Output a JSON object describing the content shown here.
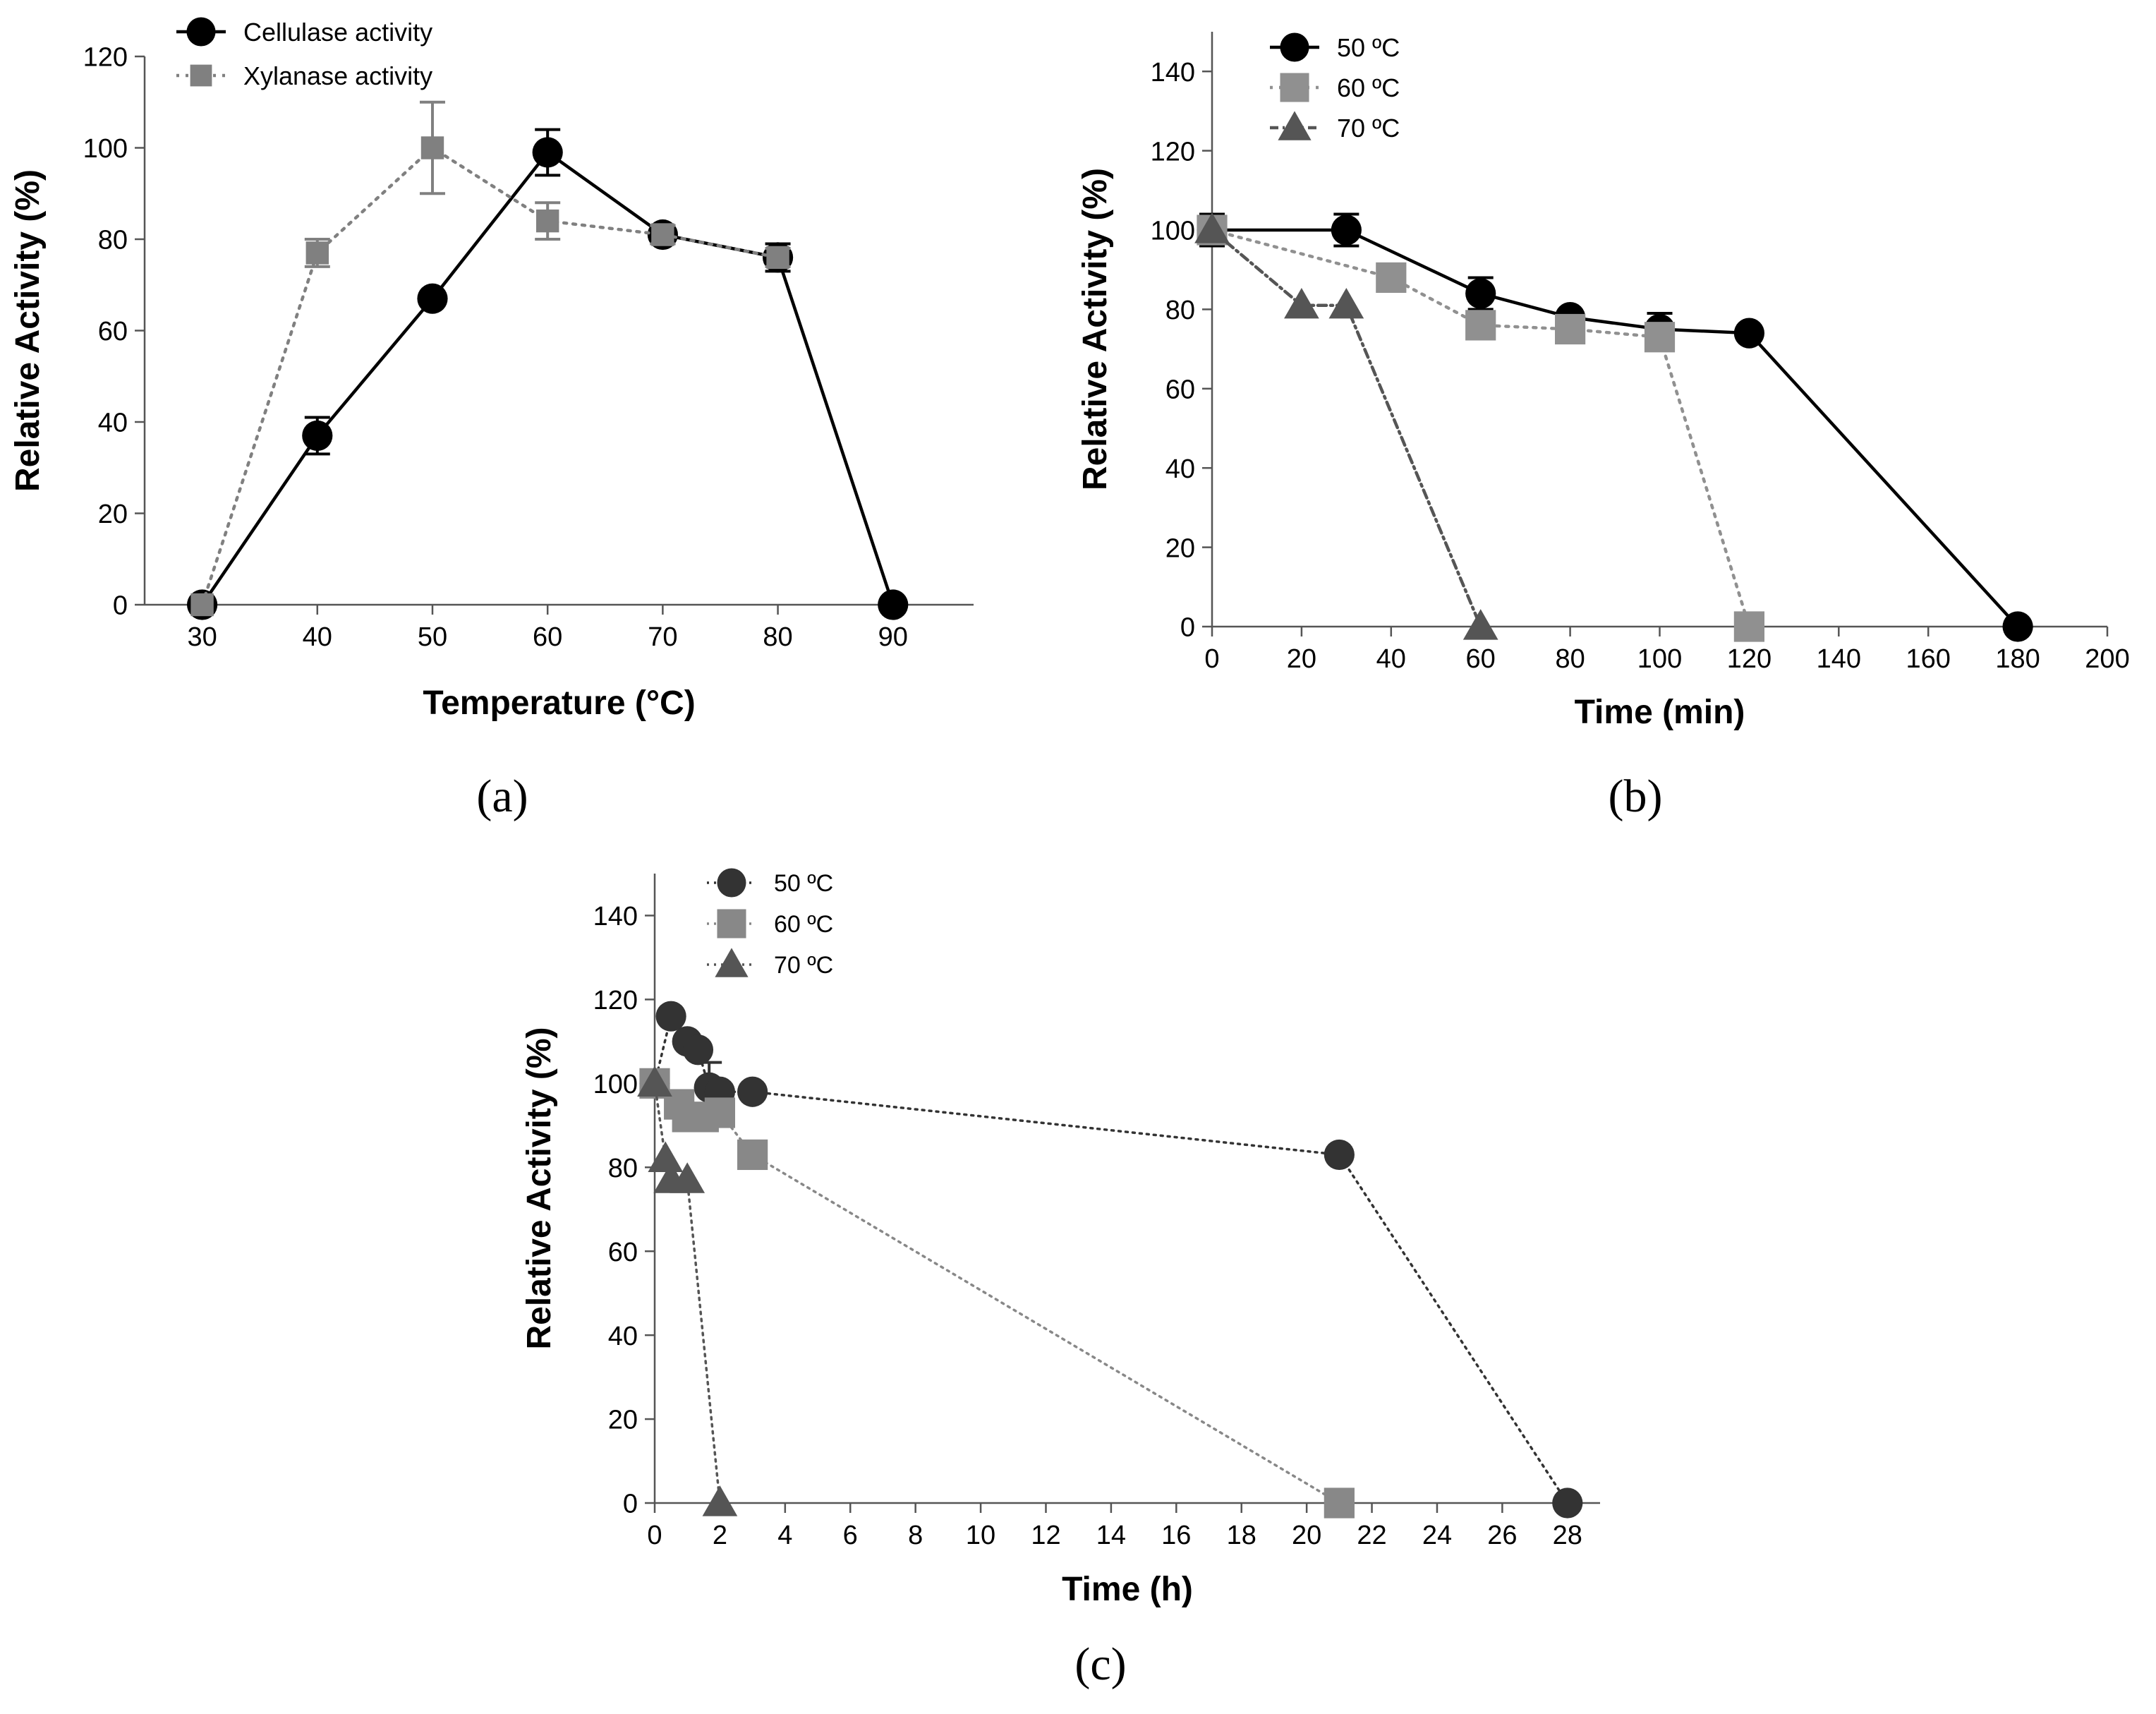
{
  "chart_data": [
    {
      "panel": "a",
      "panel_label": "(a)",
      "type": "line",
      "title": "",
      "xlabel": "Temperature (°C)",
      "ylabel": "Relative Activity (%)",
      "xlim": [
        25,
        97
      ],
      "ylim": [
        0,
        120
      ],
      "xticks": [
        30,
        40,
        50,
        60,
        70,
        80,
        90
      ],
      "yticks": [
        0,
        20,
        40,
        60,
        80,
        100,
        120
      ],
      "xtick_labels": [
        "30",
        "40",
        "50",
        "60",
        "70",
        "80",
        "90"
      ],
      "ytick_labels": [
        "0",
        "20",
        "40",
        "60",
        "80",
        "100",
        "120"
      ],
      "legend": "top-left",
      "grid": false,
      "series": [
        {
          "name": "Cellulase activity",
          "marker": "circle",
          "line": "solid",
          "color": "#000000",
          "x": [
            30,
            40,
            50,
            60,
            70,
            80,
            90
          ],
          "y": [
            0,
            37,
            67,
            99,
            81,
            76,
            0
          ],
          "err": [
            0,
            4,
            1,
            5,
            2,
            3,
            0
          ]
        },
        {
          "name": "Xylanase activity",
          "marker": "square",
          "line": "dotted",
          "color": "#808080",
          "x": [
            30,
            40,
            50,
            60,
            70,
            80
          ],
          "y": [
            0,
            77,
            100,
            84,
            81,
            76
          ],
          "err": [
            0,
            3,
            10,
            4,
            2,
            2
          ]
        }
      ]
    },
    {
      "panel": "b",
      "panel_label": "(b)",
      "type": "line",
      "title": "",
      "xlabel": "Time (min)",
      "ylabel": "Relative Activity (%)",
      "xlim": [
        0,
        200
      ],
      "ylim": [
        0,
        150
      ],
      "xticks": [
        0,
        20,
        40,
        60,
        80,
        100,
        120,
        140,
        160,
        180,
        200
      ],
      "yticks": [
        0,
        20,
        40,
        60,
        80,
        100,
        120,
        140
      ],
      "xtick_labels": [
        "0",
        "20",
        "40",
        "60",
        "80",
        "100",
        "120",
        "140",
        "160",
        "180",
        "200"
      ],
      "ytick_labels": [
        "0",
        "20",
        "40",
        "60",
        "80",
        "100",
        "120",
        "140"
      ],
      "legend": "top-left",
      "grid": false,
      "series": [
        {
          "name": "50 ºC",
          "marker": "circle",
          "line": "solid",
          "color": "#000000",
          "x": [
            0,
            30,
            60,
            80,
            100,
            120,
            180
          ],
          "y": [
            100,
            100,
            84,
            78,
            75,
            74,
            0
          ],
          "err": [
            4,
            4,
            4,
            1,
            4,
            1,
            0
          ]
        },
        {
          "name": "60 ºC",
          "marker": "square",
          "line": "dotted",
          "color": "#909090",
          "x": [
            0,
            40,
            60,
            80,
            100,
            120
          ],
          "y": [
            100,
            88,
            76,
            75,
            73,
            0
          ],
          "err": [
            3,
            3,
            1,
            1,
            2,
            0
          ]
        },
        {
          "name": "70 ºC",
          "marker": "triangle",
          "line": "dashdot",
          "color": "#555555",
          "x": [
            0,
            20,
            30,
            60
          ],
          "y": [
            100,
            81,
            81,
            0
          ],
          "err": [
            0,
            0,
            0,
            0
          ]
        }
      ]
    },
    {
      "panel": "c",
      "panel_label": "(c)",
      "type": "line",
      "title": "",
      "xlabel": "Time (h)",
      "ylabel": "Relative Activity (%)",
      "xlim": [
        0,
        29
      ],
      "ylim": [
        0,
        150
      ],
      "xticks": [
        0,
        2,
        4,
        6,
        8,
        10,
        12,
        14,
        16,
        18,
        20,
        22,
        24,
        26,
        28
      ],
      "yticks": [
        0,
        20,
        40,
        60,
        80,
        100,
        120,
        140
      ],
      "xtick_labels": [
        "0",
        "2",
        "4",
        "6",
        "8",
        "10",
        "12",
        "14",
        "16",
        "18",
        "20",
        "22",
        "24",
        "26",
        "28"
      ],
      "ytick_labels": [
        "0",
        "20",
        "40",
        "60",
        "80",
        "100",
        "120",
        "140"
      ],
      "legend": "top-left",
      "grid": false,
      "series": [
        {
          "name": "50 ºC",
          "marker": "circle",
          "line": "dotted",
          "color": "#333333",
          "x": [
            0,
            0.5,
            1,
            1.33,
            1.67,
            2,
            3,
            21,
            28
          ],
          "y": [
            100,
            116,
            110,
            108,
            99,
            98,
            98,
            83,
            0
          ],
          "err": [
            3,
            0,
            0,
            0,
            6,
            0,
            0,
            0,
            0
          ]
        },
        {
          "name": "60 ºC",
          "marker": "square",
          "line": "dotted",
          "color": "#888888",
          "x": [
            0,
            0.75,
            1,
            1.5,
            2,
            3,
            21
          ],
          "y": [
            100,
            95,
            92,
            92,
            93,
            83,
            0
          ],
          "err": [
            3,
            0,
            0,
            0,
            0,
            0,
            0
          ]
        },
        {
          "name": "70 ºC",
          "marker": "triangle",
          "line": "dotted",
          "color": "#555555",
          "x": [
            0,
            0.33,
            0.5,
            1,
            2
          ],
          "y": [
            100,
            82,
            77,
            77,
            0
          ],
          "err": [
            0,
            0,
            0,
            0,
            0
          ]
        }
      ]
    }
  ]
}
